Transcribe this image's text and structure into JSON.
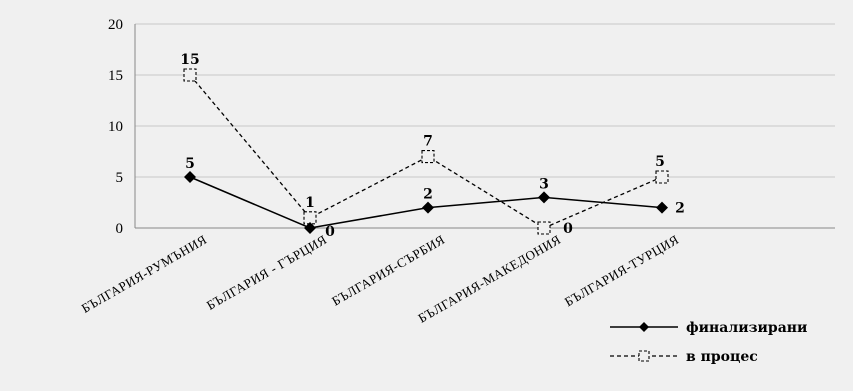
{
  "chart_data": {
    "type": "line",
    "categories": [
      "БЪЛГАРИЯ-РУМЪНИЯ",
      "БЪЛГАРИЯ - ГЪРЦИЯ",
      "БЪЛГАРИЯ-СЪРБИЯ",
      "БЪЛГАРИЯ-МАКЕДОНИЯ",
      "БЪЛГАРИЯ-ТУРЦИЯ"
    ],
    "series": [
      {
        "name": "финализирани",
        "values": [
          5,
          0,
          2,
          3,
          2
        ],
        "style": "solid",
        "marker": "diamond",
        "color": "#000000"
      },
      {
        "name": "в процес",
        "values": [
          15,
          1,
          7,
          0,
          5
        ],
        "style": "dashed",
        "marker": "square-open",
        "color": "#000000"
      }
    ],
    "title": "",
    "xlabel": "",
    "ylabel": "",
    "ylim": [
      0,
      20
    ],
    "yticks": [
      0,
      5,
      10,
      15,
      20
    ],
    "grid": true,
    "legend": "bottom-right",
    "colors": {
      "background": "#f0f0f0",
      "gridline": "#c8c8c8",
      "axis": "#888888"
    }
  }
}
